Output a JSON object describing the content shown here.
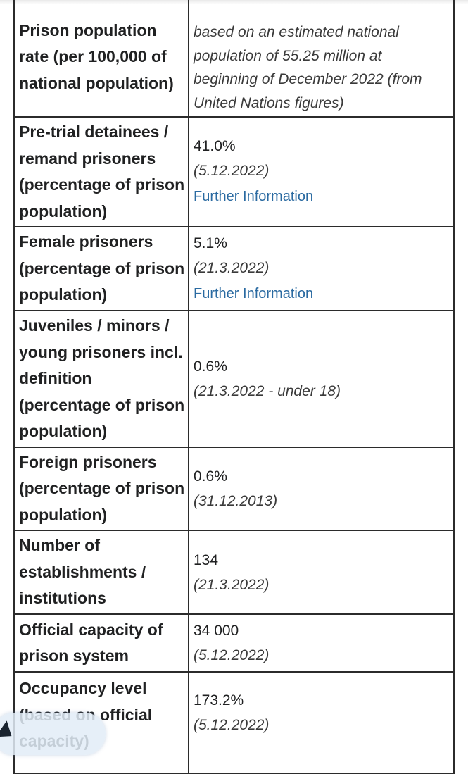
{
  "rows": [
    {
      "label": "Prison population rate (per 100,000 of national population)",
      "note": "based on an estimated national population of 55.25 million at beginning of December 2022 (from United Nations figures)"
    },
    {
      "label": "Pre-trial detainees / remand prisoners (percentage of prison population)",
      "value": "41.0%",
      "date": "(5.12.2022)",
      "link": "Further Information"
    },
    {
      "label": "Female prisoners (percentage of prison population)",
      "value": "5.1%",
      "date": "(21.3.2022)",
      "link": "Further Information"
    },
    {
      "label": "Juveniles / minors / young prisoners incl. definition (percentage of prison population)",
      "value": "0.6%",
      "date": "(21.3.2022 - under 18)"
    },
    {
      "label": "Foreign prisoners (percentage of prison population)",
      "value": "0.6%",
      "date": "(31.12.2013)"
    },
    {
      "label": "Number of establishments / institutions",
      "value": "134",
      "date": "(21.3.2022)"
    },
    {
      "label": "Official capacity of prison system",
      "value": "34 000",
      "date": "(5.12.2022)"
    },
    {
      "label": "Occupancy level (based on official capacity)",
      "value": "173.2%",
      "date": "(5.12.2022)"
    }
  ]
}
